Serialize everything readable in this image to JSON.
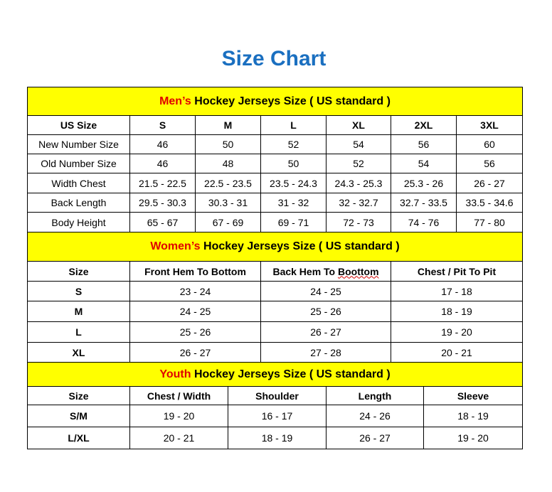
{
  "title": "Size Chart",
  "colors": {
    "title": "#1a6fc0",
    "section_bg": "#ffff00",
    "section_highlight": "#e00000"
  },
  "men": {
    "highlight": "Men’s",
    "heading": " Hockey Jerseys Size ( US standard )",
    "columns": [
      "US Size",
      "S",
      "M",
      "L",
      "XL",
      "2XL",
      "3XL"
    ],
    "rows": [
      [
        "New Number Size",
        "46",
        "50",
        "52",
        "54",
        "56",
        "60"
      ],
      [
        "Old Number Size",
        "46",
        "48",
        "50",
        "52",
        "54",
        "56"
      ],
      [
        "Width Chest",
        "21.5 - 22.5",
        "22.5 - 23.5",
        "23.5 - 24.3",
        "24.3 - 25.3",
        "25.3 - 26",
        "26 - 27"
      ],
      [
        "Back Length",
        "29.5 - 30.3",
        "30.3 - 31",
        "31 - 32",
        "32 - 32.7",
        "32.7 - 33.5",
        "33.5 - 34.6"
      ],
      [
        "Body Height",
        "65 - 67",
        "67 - 69",
        "69 - 71",
        "72 - 73",
        "74 - 76",
        "77 - 80"
      ]
    ]
  },
  "women": {
    "highlight": "Women’s",
    "heading": " Hockey Jerseys Size ( US standard )",
    "columns": [
      "Size",
      "Front Hem To Bottom",
      "Back Hem To ",
      "Chest / Pit To Pit"
    ],
    "misspelled": "Boottom",
    "rows": [
      [
        "S",
        "23 - 24",
        "24 - 25",
        "17 - 18"
      ],
      [
        "M",
        "24 - 25",
        "25 - 26",
        "18 - 19"
      ],
      [
        "L",
        "25 - 26",
        "26 - 27",
        "19 - 20"
      ],
      [
        "XL",
        "26 - 27",
        "27 - 28",
        "20 - 21"
      ]
    ]
  },
  "youth": {
    "highlight": "Youth",
    "heading": " Hockey Jerseys Size ( US standard )",
    "columns": [
      "Size",
      "Chest / Width",
      "Shoulder",
      "Length",
      "Sleeve"
    ],
    "rows": [
      [
        "S/M",
        "19 - 20",
        "16 - 17",
        "24 - 26",
        "18 - 19"
      ],
      [
        "L/XL",
        "20 - 21",
        "18 - 19",
        "26 - 27",
        "19 - 20"
      ]
    ]
  }
}
